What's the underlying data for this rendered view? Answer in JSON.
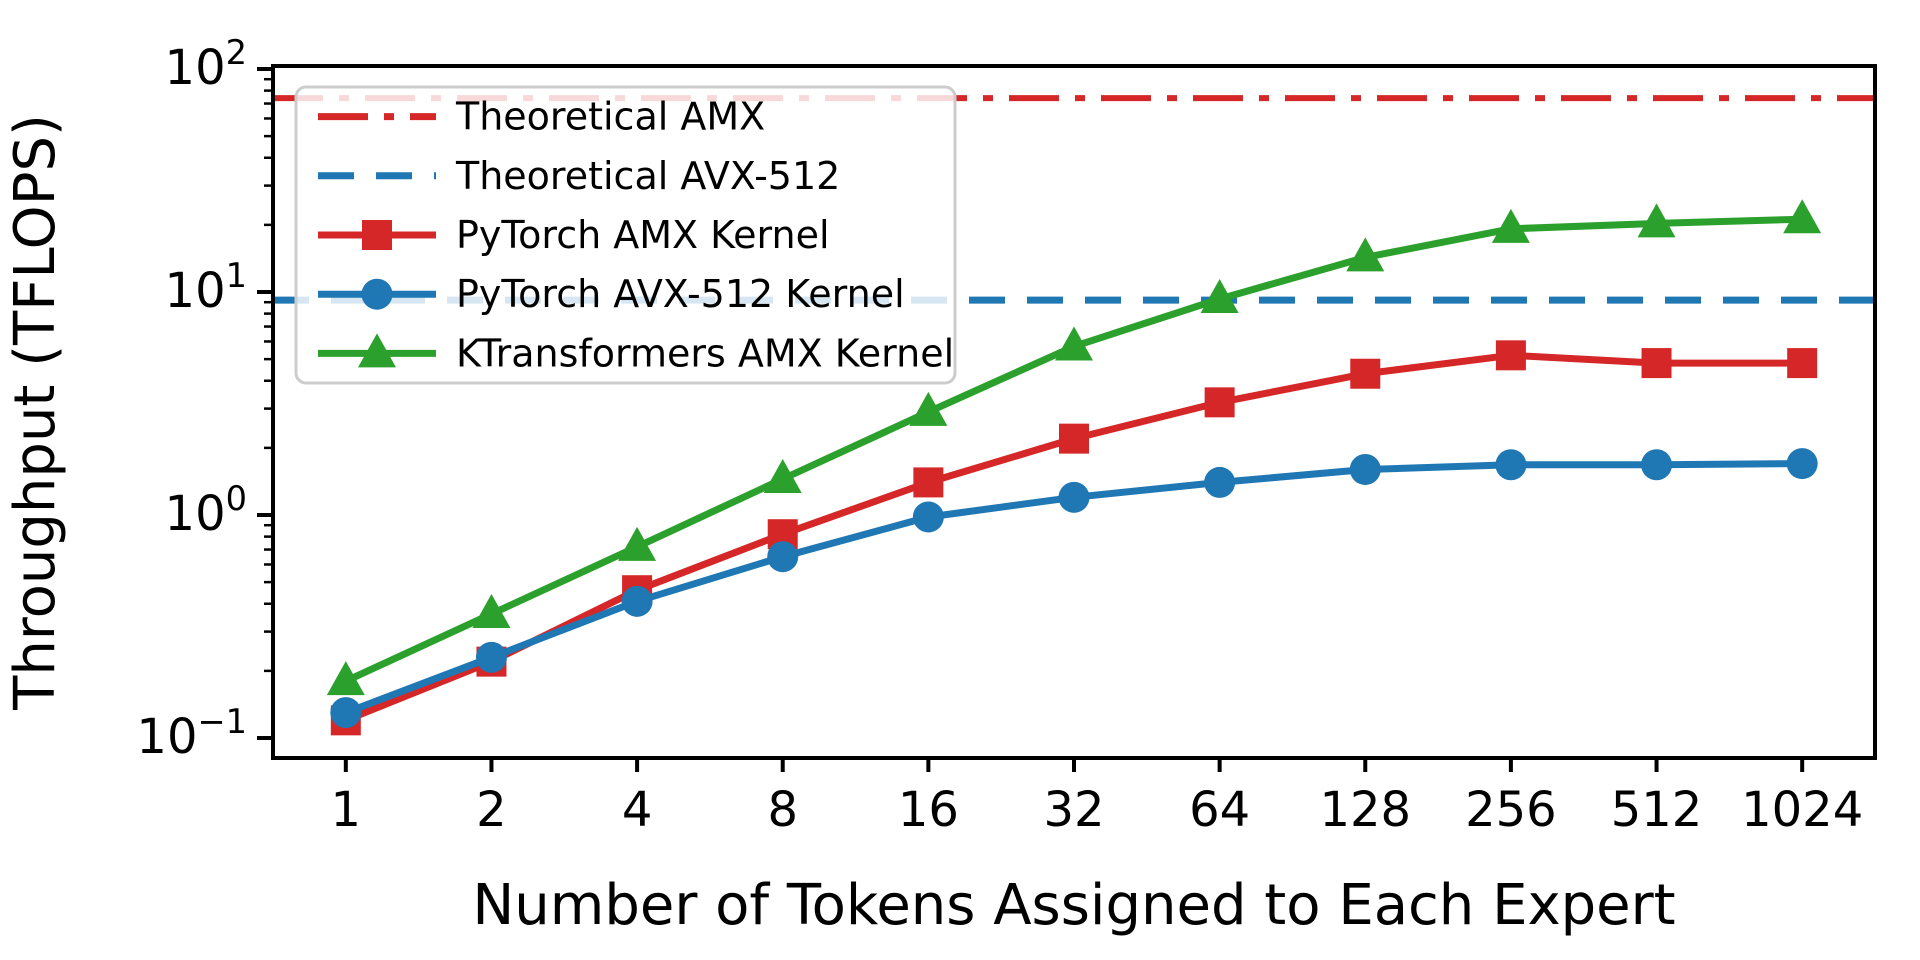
{
  "figure": {
    "background": "#ffffff"
  },
  "chart_data": {
    "type": "line",
    "title": "",
    "xlabel": "Number of Tokens Assigned to Each Expert",
    "ylabel": "Throughput (TFLOPS)",
    "x_scale": "log2-categorical",
    "y_scale": "log10",
    "ylim": [
      0.081,
      103
    ],
    "grid": false,
    "categories": [
      1,
      2,
      4,
      8,
      16,
      32,
      64,
      128,
      256,
      512,
      1024
    ],
    "x_tick_labels": [
      "1",
      "2",
      "4",
      "8",
      "16",
      "32",
      "64",
      "128",
      "256",
      "512",
      "1024"
    ],
    "y_ticks": [
      {
        "value": 0.1,
        "base": "10",
        "exp": "−1"
      },
      {
        "value": 1,
        "base": "10",
        "exp": "0"
      },
      {
        "value": 10,
        "base": "10",
        "exp": "1"
      },
      {
        "value": 100,
        "base": "10",
        "exp": "2"
      }
    ],
    "reference_lines": [
      {
        "name": "Theoretical AMX",
        "value": 74,
        "color": "#d62728",
        "style": "dashdot",
        "width": 6
      },
      {
        "name": "Theoretical AVX-512",
        "value": 9.2,
        "color": "#1f77b4",
        "style": "dashed",
        "width": 7
      }
    ],
    "series": [
      {
        "name": "PyTorch AMX Kernel",
        "color": "#d62728",
        "marker": "square",
        "values": [
          0.12,
          0.22,
          0.46,
          0.82,
          1.4,
          2.2,
          3.2,
          4.3,
          5.2,
          4.8,
          4.8
        ]
      },
      {
        "name": "PyTorch AVX-512 Kernel",
        "color": "#1f77b4",
        "marker": "circle",
        "values": [
          0.13,
          0.23,
          0.41,
          0.65,
          0.98,
          1.2,
          1.4,
          1.6,
          1.68,
          1.68,
          1.7
        ]
      },
      {
        "name": "KTransformers AMX Kernel",
        "color": "#2ca02c",
        "marker": "triangle",
        "values": [
          0.18,
          0.36,
          0.72,
          1.45,
          2.9,
          5.7,
          9.3,
          14.3,
          19.2,
          20.3,
          21.2
        ]
      }
    ],
    "legend": {
      "position": "upper-left",
      "entries": [
        "Theoretical AMX",
        "Theoretical AVX-512",
        "PyTorch AMX Kernel",
        "PyTorch AVX-512 Kernel",
        "KTransformers AMX Kernel"
      ]
    }
  }
}
